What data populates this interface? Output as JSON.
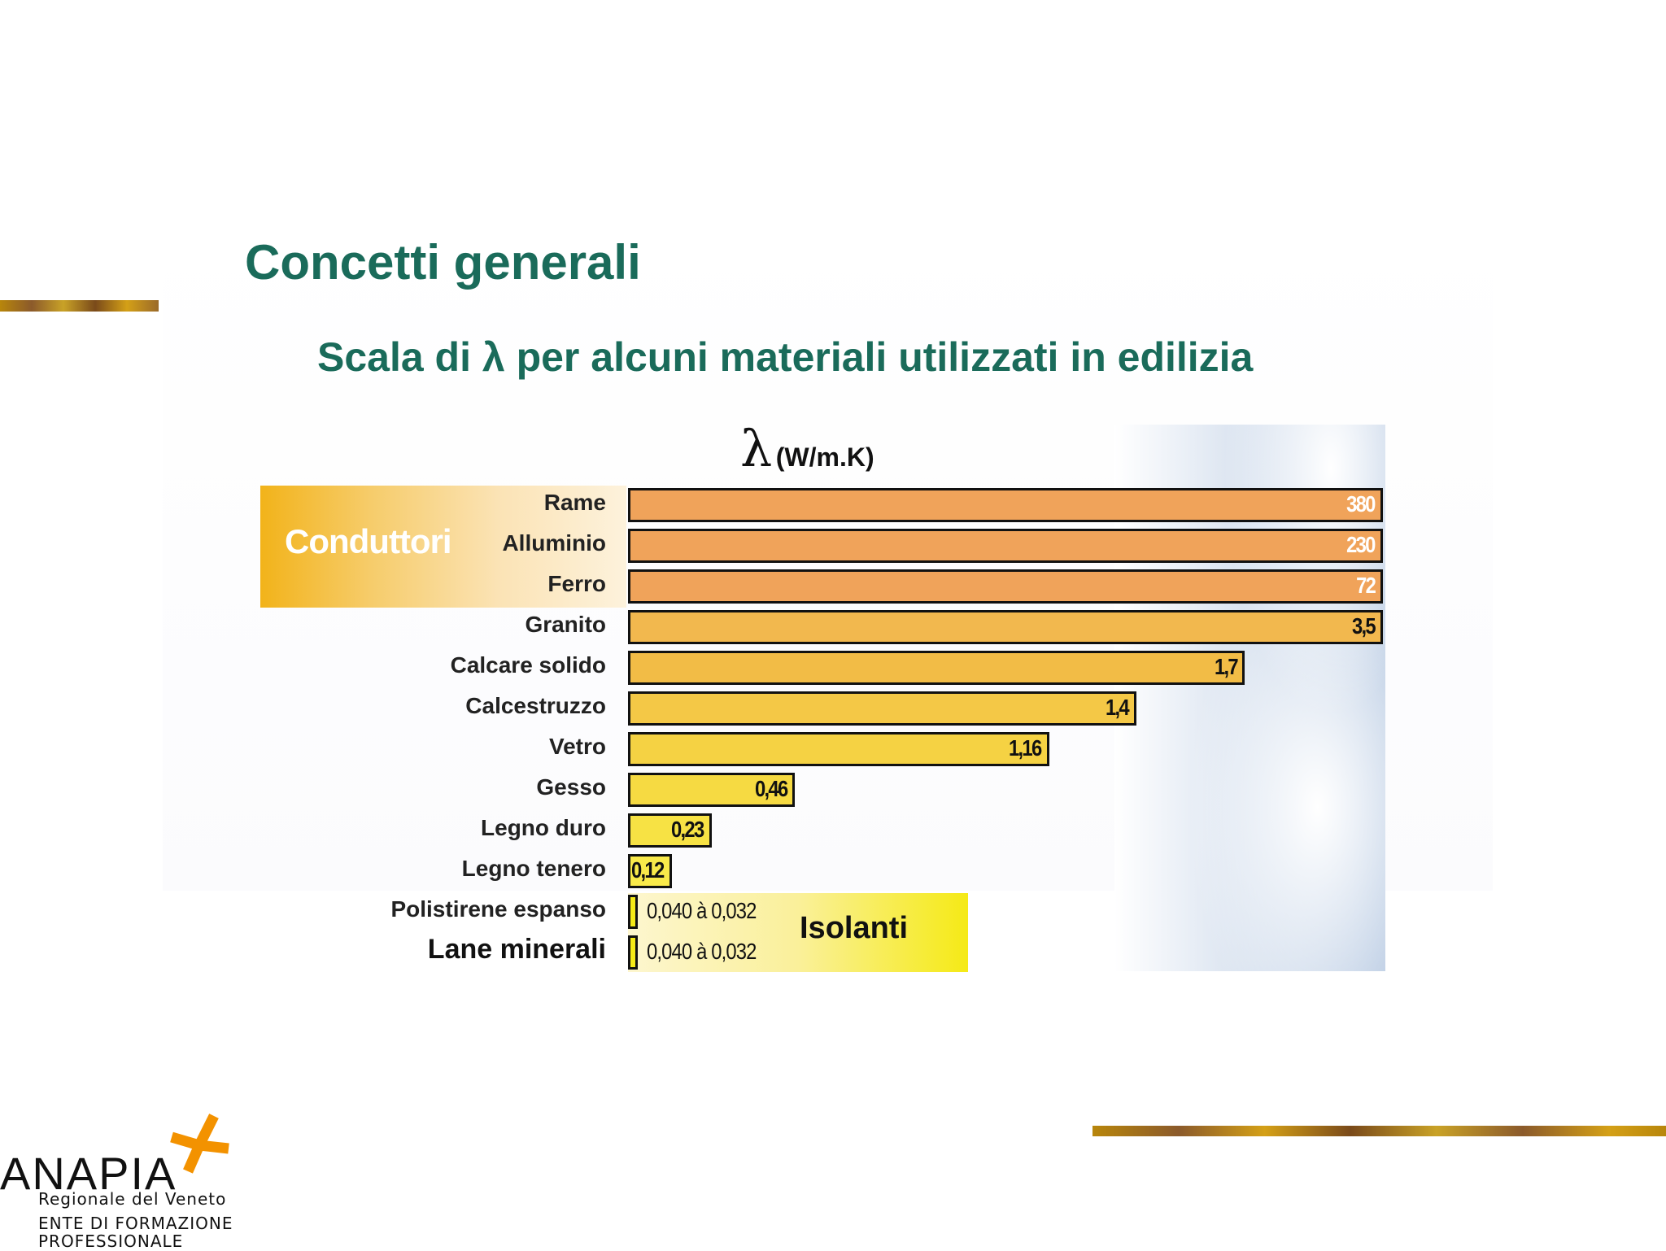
{
  "header": {
    "title": "Concetti generali",
    "subtitle": "Scala di λ per alcuni materiali utilizzati in edilizia"
  },
  "chart_data": {
    "type": "bar",
    "orientation": "horizontal",
    "title": "Scala di λ per alcuni materiali utilizzati in edilizia",
    "unit_symbol": "λ",
    "unit": "(W/m.K)",
    "groups": {
      "conductors": "Conduttori",
      "insulators": "Isolanti"
    },
    "categories": [
      "Rame",
      "Alluminio",
      "Ferro",
      "Granito",
      "Calcare solido",
      "Calcestruzzo",
      "Vetro",
      "Gesso",
      "Legno duro",
      "Legno tenero",
      "Polistirene espanso",
      "Lane minerali"
    ],
    "values": [
      380,
      230,
      72,
      3.5,
      1.7,
      1.4,
      1.16,
      0.46,
      0.23,
      0.12,
      0.04,
      0.04
    ],
    "value_labels": [
      "380",
      "230",
      "72",
      "3,5",
      "1,7",
      "1,4",
      "1,16",
      "0,46",
      "0,23",
      "0,12",
      "0,040 à 0,032",
      "0,040 à 0,032"
    ],
    "group_membership": [
      "conductors",
      "conductors",
      "conductors",
      "",
      "",
      "",
      "",
      "",
      "",
      "",
      "insulators",
      "insulators"
    ],
    "colors": [
      "#f0a35a",
      "#f0a35a",
      "#f0a35a",
      "#f2b84e",
      "#f2bc46",
      "#f4c846",
      "#f5d243",
      "#f6da42",
      "#f7e244",
      "#f9ea4a",
      "#f5ea16",
      "#f5ea16"
    ],
    "scale_note": "non-linear (bars clipped for conductors)"
  },
  "logo": {
    "name": "ANAPIA",
    "line1": "Regionale del Veneto",
    "line2": "ENTE DI FORMAZIONE",
    "line3": "PROFESSIONALE",
    "accent": "#f39200"
  }
}
